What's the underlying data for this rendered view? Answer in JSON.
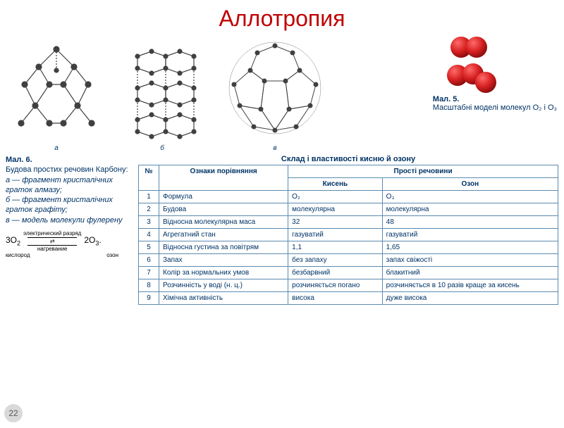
{
  "title": "Аллотропия",
  "fig5": {
    "label": "Мал. 5.",
    "text": "Масштабні моделі молекул O₂ і O₃"
  },
  "fig6": {
    "label": "Мал. 6.",
    "line1": "Будова простих речовин Карбону:",
    "a": "а — фрагмент кристалічних граток алмазу;",
    "b": "б — фрагмент кристалічних граток графіту;",
    "c": "в — модель молекули фулерену"
  },
  "sublabels": {
    "a": "а",
    "b": "б",
    "c": "в"
  },
  "reaction": {
    "left_coef": "3O",
    "left_sub": "2",
    "left_under": "кислород",
    "top": "электрический разряд",
    "bot": "нагревание",
    "right_coef": "2O",
    "right_sub": "3",
    "right_under": "озон",
    "dot": "."
  },
  "table": {
    "title": "Склад і властивості кисню й озону",
    "head_num": "№",
    "head_feature": "Ознаки порівняння",
    "head_group": "Прості речовини",
    "head_c1": "Кисень",
    "head_c2": "Озон",
    "rows": [
      {
        "n": "1",
        "f": "Формула",
        "a": "O₂",
        "b": "O₃"
      },
      {
        "n": "2",
        "f": "Будова",
        "a": "молекулярна",
        "b": "молекулярна"
      },
      {
        "n": "3",
        "f": "Відносна молекулярна маса",
        "a": "32",
        "b": "48"
      },
      {
        "n": "4",
        "f": "Агрегатний стан",
        "a": "газуватий",
        "b": "газуватий"
      },
      {
        "n": "5",
        "f": "Відносна густина за повітрям",
        "a": "1,1",
        "b": "1,65"
      },
      {
        "n": "6",
        "f": "Запах",
        "a": "без запаху",
        "b": "запах свіжості"
      },
      {
        "n": "7",
        "f": "Колір за нормальних умов",
        "a": "безбарвний",
        "b": "блакитний"
      },
      {
        "n": "8",
        "f": "Розчинність у воді (н. ц.)",
        "a": "розчиняється погано",
        "b": "розчиняється в 10 разів краще за кисень"
      },
      {
        "n": "9",
        "f": "Хімічна активність",
        "a": "висока",
        "b": "дуже висока"
      }
    ]
  },
  "page_number": "22",
  "colors": {
    "title": "#c00000",
    "caption": "#003366",
    "atom": "#404040",
    "bond": "#404040",
    "red_atom": "#d62020",
    "table_border": "#5b8bb0"
  }
}
